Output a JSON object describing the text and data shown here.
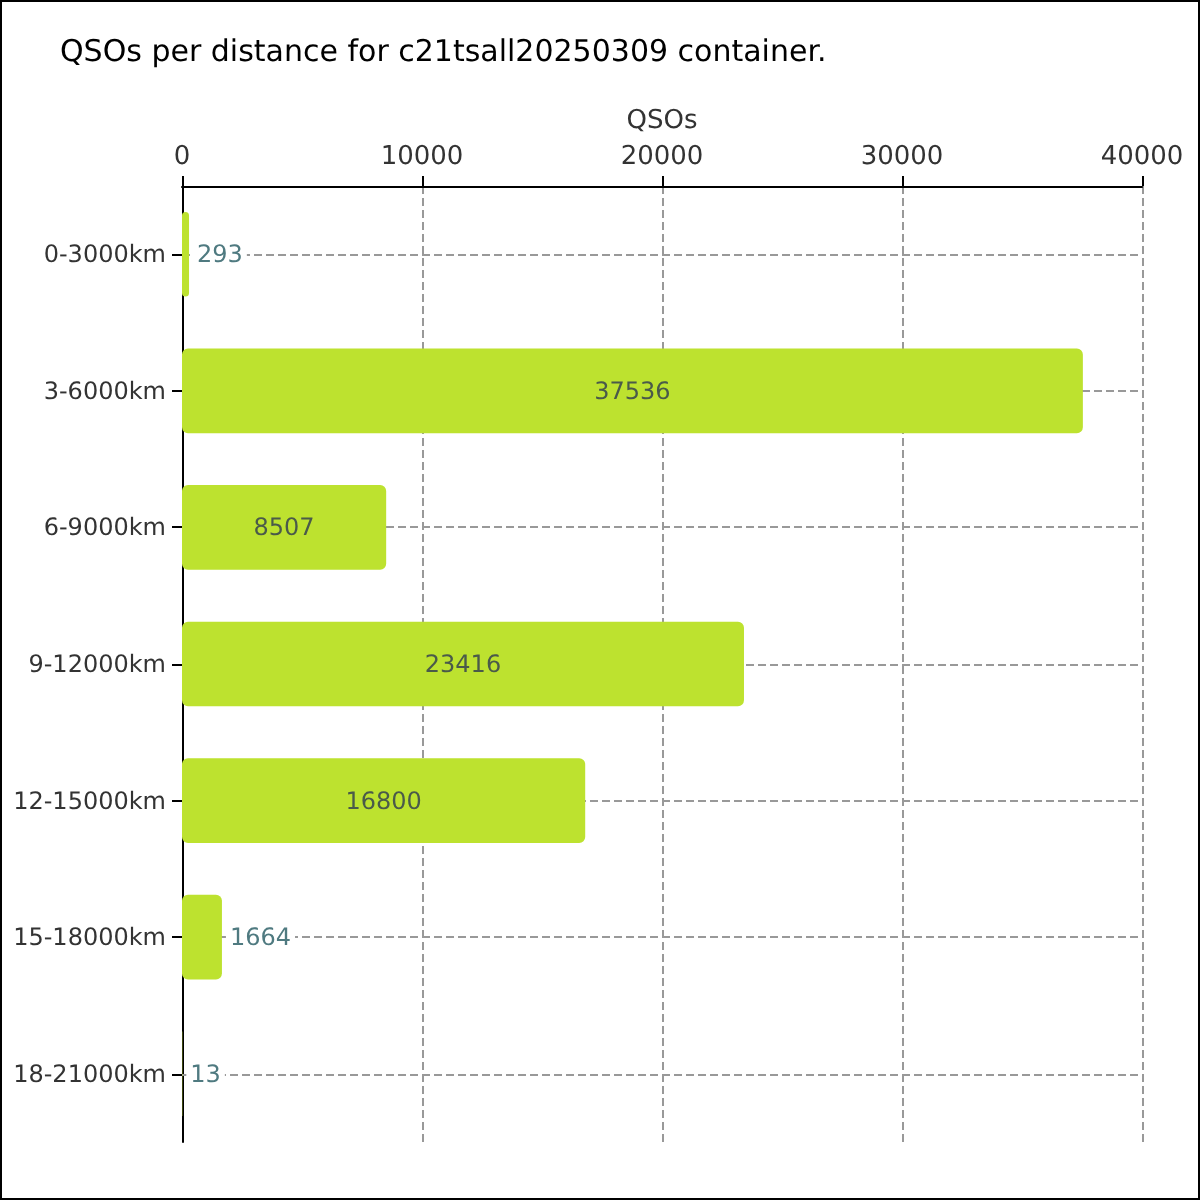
{
  "chart_data": {
    "type": "bar",
    "orientation": "horizontal",
    "title": "QSOs per distance for c21tsall20250309 container.",
    "xlabel": "QSOs",
    "categories": [
      "0-3000km",
      "3-6000km",
      "6-9000km",
      "9-12000km",
      "12-15000km",
      "15-18000km",
      "18-21000km"
    ],
    "values": [
      293,
      37536,
      8507,
      23416,
      16800,
      1664,
      13
    ],
    "color": "#bde22f",
    "data_labels": true,
    "grid": true,
    "xlim": [
      0,
      40000
    ],
    "xticks": [
      0,
      10000,
      20000,
      30000,
      40000
    ]
  }
}
